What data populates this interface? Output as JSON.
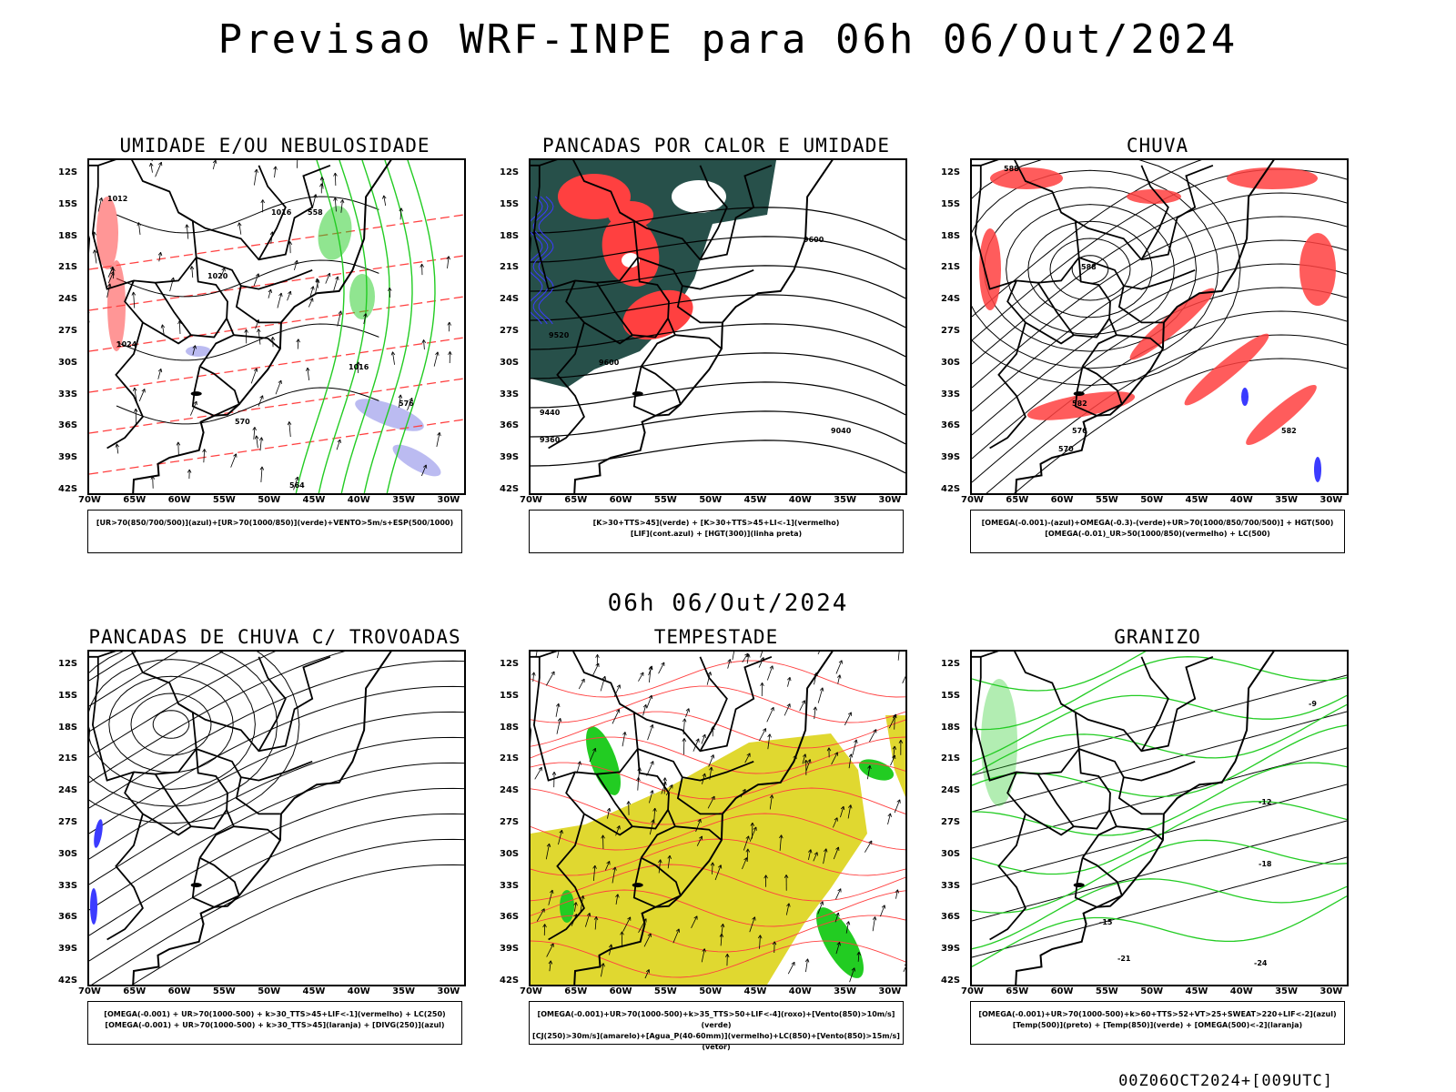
{
  "title": "Previsao WRF-INPE  para 06h 06/Out/2024",
  "mid_label": "06h 06/Out/2024",
  "footer": "00Z06OCT2024+[009UTC]",
  "lat_labels": [
    "12S",
    "15S",
    "18S",
    "21S",
    "24S",
    "27S",
    "30S",
    "33S",
    "36S",
    "39S",
    "42S"
  ],
  "lon_labels": [
    "70W",
    "65W",
    "60W",
    "55W",
    "50W",
    "45W",
    "40W",
    "35W",
    "30W"
  ],
  "colors": {
    "blue": "#3b3bff",
    "green": "#22cc22",
    "red": "#ff4040",
    "dark_teal": "#27504a",
    "yellow": "#e0d830",
    "lavender": "#b4b4f0"
  },
  "panels": [
    {
      "id": "umidade",
      "title": "UMIDADE E/OU NEBULOSIDADE",
      "legend": [
        "[UR>70(850/700/500)](azul)+[UR>70(1000/850)](verde)+VENTO>5m/s+ESP(500/1000)"
      ],
      "contour_labels": [
        "1012",
        "1016",
        "1020",
        "1024",
        "1016",
        "576",
        "570",
        "564",
        "558"
      ]
    },
    {
      "id": "pancadas-calor",
      "title": "PANCADAS POR CALOR E UMIDADE",
      "legend": [
        "[K>30+TTS>45](verde) + [K>30+TTS>45+LI<-1](vermelho)",
        "[LIF](cont.azul) + [HGT(300)](linha preta)"
      ],
      "contour_labels": [
        "9600",
        "9520",
        "9440",
        "9360",
        "9040",
        "9600"
      ]
    },
    {
      "id": "chuva",
      "title": "CHUVA",
      "legend": [
        "[OMEGA(-0.001)-(azul)+OMEGA(-0.3)-(verde)+UR>70(1000/850/700/500)] + HGT(500)",
        "[OMEGA(-0.01)_UR>50(1000/850)(vermelho) + LC(500)"
      ],
      "contour_labels": [
        "588",
        "588",
        "582",
        "576",
        "570",
        "582"
      ]
    },
    {
      "id": "trovoadas",
      "title": "PANCADAS DE CHUVA C/ TROVOADAS",
      "legend": [
        "[OMEGA(-0.001) + UR>70(1000-500) + k>30_TTS>45+LIF<-1](vermelho) + LC(250)",
        "[OMEGA(-0.001) + UR>70(1000-500) + k>30_TTS>45](laranja) + [DIVG(250)](azul)"
      ],
      "contour_labels": []
    },
    {
      "id": "tempestade",
      "title": "TEMPESTADE",
      "legend": [
        "[OMEGA(-0.001)+UR>70(1000-500)+k>35_TTS>50+LIF<-4](roxo)+[Vento(850)>10m/s](verde)",
        "[CJ(250)>30m/s](amarelo)+[Agua_P(40-60mm)](vermelho)+LC(850)+[Vento(850)>15m/s](vetor)"
      ],
      "contour_labels": []
    },
    {
      "id": "granizo",
      "title": "GRANIZO",
      "legend": [
        "[OMEGA(-0.001)+UR>70(1000-500)+k>60+TTS>52+VT>25+SWEAT>220+LIF<-2](azul)",
        "[Temp(500)](preto) + [Temp(850)](verde) + [OMEGA(500)<-2](laranja)"
      ],
      "contour_labels": [
        "-12",
        "-15",
        "-18",
        "-21",
        "-24",
        "-9"
      ]
    }
  ]
}
